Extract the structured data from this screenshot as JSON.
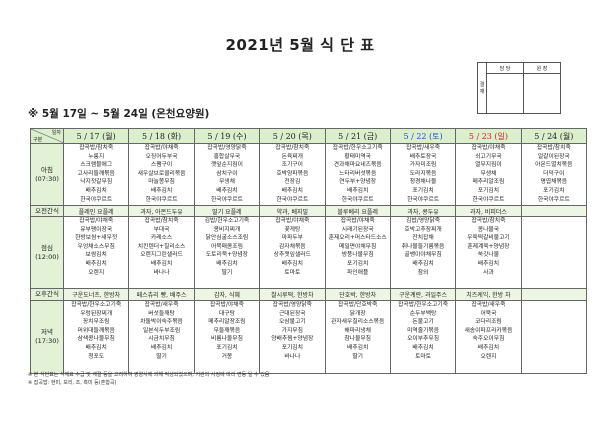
{
  "title": "2021년 5월 식 단 표",
  "approval": {
    "side_label": "결 재",
    "columns": [
      "담 당",
      "원 장"
    ]
  },
  "subtitle": "※ 5월 17일 ~ 5월 24일 (온천요양원)",
  "table": {
    "corner_top": "일자",
    "corner_bottom": "구분",
    "row_labels": {
      "breakfast": "아침\n(07:30)",
      "am_snack": "오전간식",
      "lunch": "점심\n(12:00)",
      "pm_snack": "오후간식",
      "dinner": "저녁\n(17:30)"
    },
    "colors": {
      "header_bg": "#dcefcd",
      "saturday": "#1f4fd0",
      "sunday": "#d0202a"
    },
    "days": [
      {
        "date": "5 / 17 (월)",
        "type": "weekday",
        "breakfast": [
          "잡곡밥/참치죽",
          "누룽지",
          "스크램블에그",
          "고사리들깨볶음",
          "낙지젓갈무침",
          "배추김치",
          "한국야쿠르트"
        ],
        "am_snack": "플레인 요플레",
        "lunch": [
          "잡곡밥/야채죽",
          "유부팽이장국",
          "한방보쌈+새우젓",
          "우엉채소스무침",
          "보쌈김치",
          "배추김치",
          "오렌지"
        ],
        "pm_snack": "구운도너츠, 한방차",
        "dinner": [
          "잡곡밥/한우소고기죽",
          "우렁된장찌개",
          "꽁치무조림",
          "머위대들깨볶음",
          "삼색콩나물무침",
          "배추김치",
          "청포도"
        ]
      },
      {
        "date": "5 / 18 (화)",
        "type": "weekday",
        "breakfast": [
          "잡곡밥/야채죽",
          "오징어두부국",
          "스팸구이",
          "새우살브로콜리볶음",
          "마늘쫑무침",
          "배추김치",
          "한국야쿠르트"
        ],
        "am_snack": "과자, 아몬드두유",
        "lunch": [
          "잡곡밥/참치죽",
          "부대국",
          "카레소스",
          "치킨텐더+칠리소스",
          "오렌지그린샐러드",
          "배추김치",
          "바나나"
        ],
        "pm_snack": "페스츄리 빵, 배주스",
        "dinner": [
          "잡곡밥/새우죽",
          "버섯들깨탕",
          "차돌박이숙주볶음",
          "일본식두부조림",
          "시금치무침",
          "배추김치",
          "딸기"
        ]
      },
      {
        "date": "5 / 19 (수)",
        "type": "weekday",
        "breakfast": [
          "잡곡밥/영양닭죽",
          "홍합살무국",
          "깻잎순지짐이",
          "삼치구이",
          "무생채",
          "배추김치",
          "한국야쿠르트"
        ],
        "am_snack": "딸기 요플레",
        "lunch": [
          "김밥/한우소고기죽",
          "콩비지찌개",
          "닭안심굴소스조림",
          "어묵매콤조림",
          "도토리묵+양념장",
          "배추김치",
          "딸기"
        ],
        "pm_snack": "감자, 식혜",
        "dinner": [
          "잡곡밥/야채죽",
          "대구탕",
          "메추리알장조림",
          "무들깨볶음",
          "비름나물무침",
          "포기김치",
          "거봉"
        ]
      },
      {
        "date": "5 / 20 (목)",
        "type": "weekday",
        "breakfast": [
          "잡곡밥/참치죽",
          "돈육찌개",
          "조기구이",
          "호박양파볶음",
          "전장김",
          "배추김치",
          "한국야쿠르트"
        ],
        "am_snack": "약과, 베지밀",
        "lunch": [
          "잡곡밥/야채죽",
          "꽃게탕",
          "마파두부",
          "감자채볶음",
          "상추깻잎샐러드",
          "배추김치",
          "토마토"
        ],
        "pm_snack": "찰시루떡, 한방차",
        "dinner": [
          "잡곡밥/영양닭죽",
          "근대된장국",
          "오삼불고기",
          "가지무침",
          "양배추찜+양념장",
          "포기김치",
          "바나나"
        ]
      },
      {
        "date": "5 / 21 (금)",
        "type": "weekday",
        "breakfast": [
          "잡곡밥/한우소고기죽",
          "황태미역국",
          "견과채마요네즈볶음",
          "느타리버섯볶음",
          "연두부+양념장",
          "배추김치",
          "한국야쿠르트"
        ],
        "am_snack": "블루베리 요플레",
        "lunch": [
          "잡곡밥/야채죽",
          "시래기된장국",
          "훈제오리+머스타드소스",
          "메밀면야채무침",
          "방풍나물무침",
          "포기김치",
          "파인애플"
        ],
        "pm_snack": "단호박, 한방차",
        "dinner": [
          "잡곡밥/단호박죽",
          "닭개장",
          "관자새우칠리소스볶음",
          "해파리냉채",
          "참나물무침",
          "배추김치",
          "딸기"
        ]
      },
      {
        "date": "5 / 22 (토)",
        "type": "saturday",
        "breakfast": [
          "잡곡밥/새우죽",
          "배추토장국",
          "가자미조림",
          "도라지볶음",
          "청경채나물",
          "포기김치",
          "한국야쿠르트"
        ],
        "am_snack": "과자, 콩두유",
        "lunch": [
          "김밥/영양닭죽",
          "호박고추장찌개",
          "잔치잡채",
          "취나물들기름볶음",
          "골뱅이야채무침",
          "배추김치",
          "참외"
        ],
        "pm_snack": "구운계란, 과일주스",
        "dinner": [
          "잡곡밥/한우소고기죽",
          "순두부백탕",
          "돈불고기",
          "미역줄기볶음",
          "오이부추무침",
          "배추김치",
          "토마토"
        ]
      },
      {
        "date": "5 / 23 (일)",
        "type": "sunday",
        "breakfast": [
          "잡곡밥/야채죽",
          "쇠고기무국",
          "열무지짐이",
          "무생채",
          "메추리알조림",
          "포기김치",
          "한국야쿠르트"
        ],
        "am_snack": "과자, 비피더스",
        "lunch": [
          "잡곡밥/참치죽",
          "콩나물국",
          "우육떡갈비불고기",
          "훈제계육+양념장",
          "쑥갓나물",
          "배추김치",
          "사과"
        ],
        "pm_snack": "치즈케익, 한방 차",
        "dinner": [
          "잡곡밥/새우죽",
          "어묵국",
          "코다리조림",
          "새송이파프리카볶음",
          "숙주오이무침",
          "배추김치",
          "오렌지"
        ]
      },
      {
        "date": "5 / 24 (월)",
        "type": "weekday",
        "breakfast": [
          "잡곡밥/참치죽",
          "얼갈이된장국",
          "아몬드멸치볶음",
          "더덕구이",
          "명엽채볶음",
          "포기김치",
          "한국야쿠르트"
        ],
        "am_snack": "",
        "lunch": [],
        "pm_snack": "",
        "dinner": []
      }
    ]
  },
  "footnotes": [
    "※ 본 식단표는 식재료 수급 및 계절 등을 고려하여 영양사에 의해 작성되었으며, 기관의 사정에 따라 변동 될 수 있음",
    "※ 잡곡밥: 현미, 보리, 조, 흑미 등(혼합곡)"
  ]
}
